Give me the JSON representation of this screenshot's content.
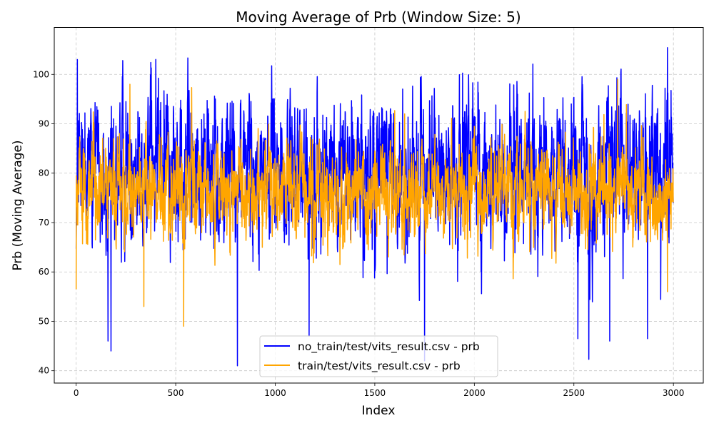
{
  "chart_data": {
    "type": "line",
    "title": "Moving Average of Prb (Window Size: 5)",
    "xlabel": "Index",
    "ylabel": "Prb (Moving Average)",
    "xlim": [
      -110,
      3150
    ],
    "ylim": [
      37.5,
      109.5
    ],
    "x_ticks": [
      0,
      500,
      1000,
      1500,
      2000,
      2500,
      3000
    ],
    "y_ticks": [
      40,
      50,
      60,
      70,
      80,
      90,
      100
    ],
    "grid": true,
    "legend_position": "lower center",
    "series": [
      {
        "name": "no_train/test/vits_result.csv - prb",
        "color": "#0000ff",
        "n_points": 3000,
        "x_start": 0,
        "x_end": 2999,
        "min": 40.8,
        "max": 106,
        "mean": 80,
        "std": 14,
        "notable_points": [
          [
            6,
            103
          ],
          [
            160,
            46
          ],
          [
            175,
            44
          ],
          [
            810,
            41
          ],
          [
            1170,
            47
          ],
          [
            1750,
            42
          ],
          [
            2520,
            46.5
          ],
          [
            2575,
            42.3
          ],
          [
            2680,
            46
          ],
          [
            2870,
            46.5
          ]
        ]
      },
      {
        "name": "train/test/vits_result.csv - prb",
        "color": "#ffa500",
        "n_points": 3000,
        "x_start": 0,
        "x_end": 2999,
        "min": 49,
        "max": 99,
        "mean": 76,
        "std": 9,
        "notable_points": [
          [
            0,
            56.5
          ],
          [
            270,
            98
          ],
          [
            340,
            53
          ],
          [
            540,
            49
          ],
          [
            1650,
            92
          ],
          [
            2720,
            99
          ],
          [
            2970,
            56
          ]
        ]
      }
    ]
  }
}
